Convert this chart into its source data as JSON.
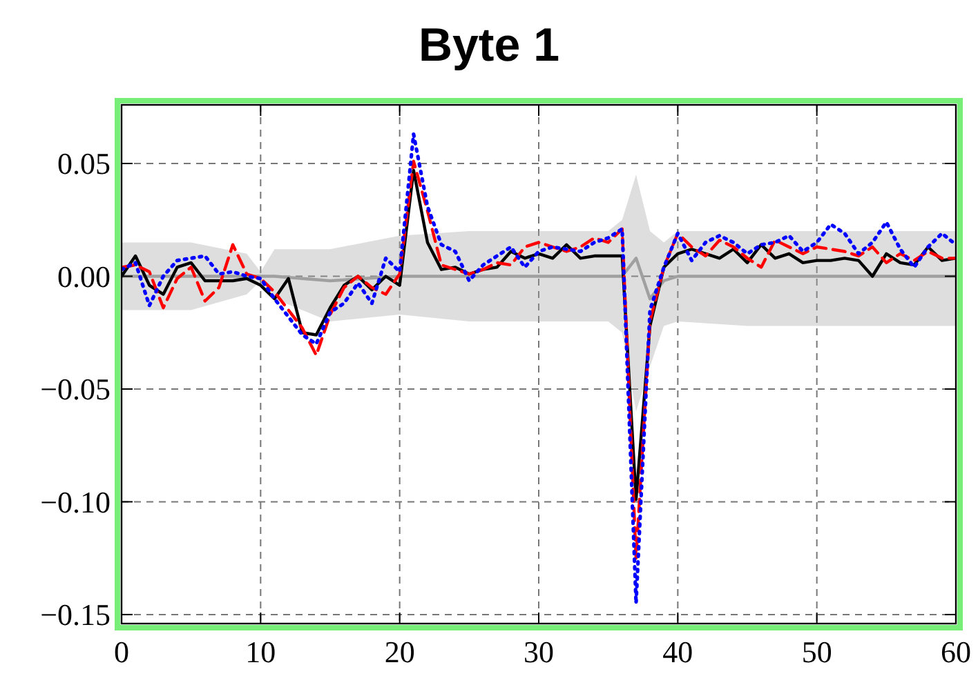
{
  "chart_data": {
    "type": "line",
    "title": "Byte 1",
    "xlim": [
      0,
      60
    ],
    "ylim": [
      -0.154,
      0.076
    ],
    "xticks": [
      0,
      10,
      20,
      30,
      40,
      50,
      60
    ],
    "yticks": [
      {
        "value": -0.15,
        "label": "−0.15"
      },
      {
        "value": -0.1,
        "label": "−0.10"
      },
      {
        "value": -0.05,
        "label": "−0.05"
      },
      {
        "value": 0,
        "label": "0.00"
      },
      {
        "value": 0.05,
        "label": "0.05"
      }
    ],
    "grid": true,
    "x": [
      0,
      1,
      2,
      3,
      4,
      5,
      6,
      7,
      8,
      9,
      10,
      11,
      12,
      13,
      14,
      15,
      16,
      17,
      18,
      19,
      20,
      21,
      22,
      23,
      24,
      25,
      26,
      27,
      28,
      29,
      30,
      31,
      32,
      33,
      34,
      35,
      36,
      37,
      38,
      39,
      40,
      41,
      42,
      43,
      44,
      45,
      46,
      47,
      48,
      49,
      50,
      51,
      52,
      53,
      54,
      55,
      56,
      57,
      58,
      59,
      60
    ],
    "series": [
      {
        "color": "#a0a0a0",
        "x": [
          0,
          5,
          9,
          10,
          11,
          15,
          20,
          25,
          30,
          35,
          36,
          37,
          38,
          39,
          40,
          45,
          50,
          55,
          60
        ],
        "values": [
          0,
          0,
          0,
          0,
          0,
          -0.002,
          0,
          0,
          0,
          0,
          0,
          0.008,
          -0.01,
          -0.002,
          0,
          0,
          0,
          0,
          0
        ],
        "lower": [
          -0.015,
          -0.015,
          -0.008,
          -0.002,
          -0.01,
          -0.02,
          -0.017,
          -0.02,
          -0.02,
          -0.02,
          -0.025,
          -0.06,
          -0.04,
          -0.022,
          -0.02,
          -0.022,
          -0.022,
          -0.022,
          -0.022
        ],
        "upper": [
          0.015,
          0.015,
          0.01,
          0.002,
          0.012,
          0.012,
          0.018,
          0.02,
          0.02,
          0.02,
          0.025,
          0.045,
          0.02,
          0.015,
          0.02,
          0.02,
          0.02,
          0.02,
          0.02
        ]
      },
      {
        "color": "#000000",
        "line_style": "solid",
        "values": [
          0,
          0.009,
          -0.004,
          -0.008,
          0.004,
          0.006,
          -0.002,
          -0.002,
          -0.002,
          -0.001,
          -0.004,
          -0.01,
          -0.001,
          -0.025,
          -0.026,
          -0.014,
          -0.004,
          0,
          -0.006,
          0,
          -0.004,
          0.047,
          0.015,
          0.003,
          0.004,
          0.001,
          0.003,
          0.004,
          0.011,
          0.008,
          0.01,
          0.008,
          0.014,
          0.008,
          0.009,
          0.009,
          0.009,
          -0.099,
          -0.022,
          0.004,
          0.01,
          0.012,
          0.01,
          0.008,
          0.012,
          0.006,
          0.014,
          0.008,
          0.01,
          0.006,
          0.007,
          0.007,
          0.008,
          0.007,
          0,
          0.01,
          0.006,
          0.005,
          0.013,
          0.007,
          0.008
        ]
      },
      {
        "color": "#ff0000",
        "line_style": "dashed",
        "values": [
          0.004,
          0.005,
          0.002,
          -0.014,
          -0.001,
          0.004,
          -0.011,
          -0.005,
          0.014,
          0.001,
          -0.001,
          -0.007,
          -0.015,
          -0.023,
          -0.035,
          -0.017,
          -0.005,
          0,
          -0.005,
          -0.008,
          0.001,
          0.051,
          0.029,
          0.005,
          0.003,
          0.001,
          0.003,
          0.006,
          0.005,
          0.013,
          0.015,
          0.013,
          0.011,
          0.013,
          0.017,
          0.015,
          0.021,
          -0.125,
          -0.02,
          0.004,
          0.019,
          0.013,
          0.009,
          0.016,
          0.013,
          0.008,
          0.004,
          0.016,
          0.013,
          0.01,
          0.013,
          0.012,
          0.011,
          0.009,
          0.013,
          0.006,
          0.01,
          0.007,
          0.011,
          0.008,
          0.008
        ]
      },
      {
        "color": "#0000ff",
        "line_style": "dotted",
        "values": [
          0.003,
          0.006,
          -0.013,
          0,
          0.007,
          0.008,
          0.009,
          0.001,
          0.002,
          0,
          -0.001,
          -0.01,
          -0.018,
          -0.026,
          -0.03,
          -0.016,
          -0.012,
          -0.003,
          -0.012,
          0.008,
          0.002,
          0.063,
          0.031,
          0.014,
          0.011,
          -0.002,
          0.005,
          0.009,
          0.013,
          0.004,
          0.011,
          0.013,
          0.012,
          0.011,
          0.015,
          0.017,
          0.021,
          -0.145,
          -0.015,
          0.004,
          0.019,
          0.007,
          0.015,
          0.018,
          0.015,
          0.01,
          0.014,
          0.015,
          0.018,
          0.011,
          0.015,
          0.023,
          0.019,
          0.01,
          0.015,
          0.024,
          0.012,
          0.004,
          0.013,
          0.019,
          0.014
        ]
      }
    ]
  }
}
